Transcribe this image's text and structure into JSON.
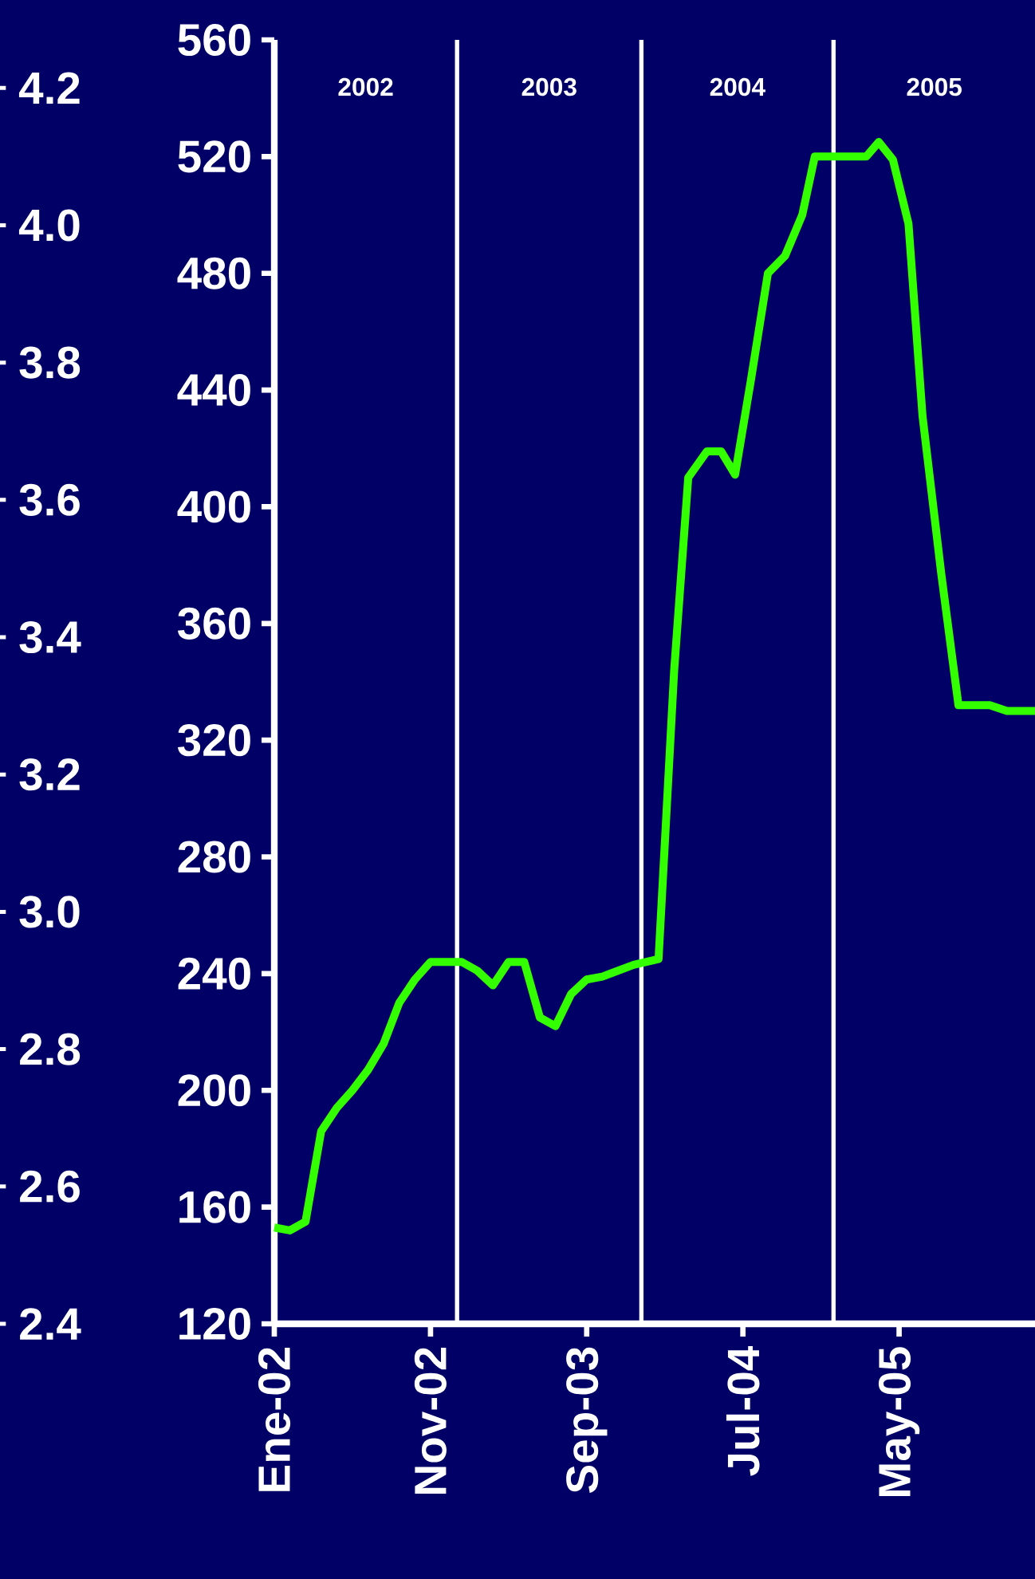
{
  "chart_data": {
    "type": "line",
    "x": [
      "2002-01",
      "2002-02",
      "2002-03",
      "2002-04",
      "2002-05",
      "2002-06",
      "2002-07",
      "2002-08",
      "2002-09",
      "2002-10",
      "2002-11",
      "2002-12",
      "2003-01",
      "2003-02",
      "2003-03",
      "2003-04",
      "2003-05",
      "2003-06",
      "2003-07",
      "2003-08",
      "2003-09",
      "2003-10",
      "2003-11",
      "2003-12",
      "2004-01-19",
      "2004-02-19",
      "2004-03-16",
      "2004-04-22",
      "2004-05-19",
      "2004-06-16",
      "2004-07-16",
      "2004-08-19",
      "2004-09-22",
      "2004-10-25",
      "2004-11-19",
      "2005-02-28",
      "2005-03-22",
      "2005-04-19",
      "2005-05-19",
      "2005-06-16",
      "2005-07-22",
      "2005-08-25",
      "2005-10-25",
      "2005-11-28",
      "2006-01-22"
    ],
    "series": [
      {
        "color": "#33ff00",
        "values": [
          153,
          152,
          155,
          186,
          194,
          200,
          207,
          216,
          230,
          238,
          244,
          244,
          244,
          241,
          236,
          244,
          244,
          225,
          222,
          233,
          238,
          239,
          241,
          243,
          245,
          344,
          410,
          419,
          419,
          411,
          443,
          480,
          486,
          500,
          520,
          520,
          525,
          519,
          497,
          431,
          377,
          332,
          332,
          330,
          330
        ]
      }
    ],
    "xlim": [
      "2002-01",
      "2006-01-22"
    ],
    "xticks": [
      {
        "value": "2002-01",
        "label": "Ene-02"
      },
      {
        "value": "2002-11",
        "label": "Nov-02"
      },
      {
        "value": "2003-09",
        "label": "Sep-03"
      },
      {
        "value": "2004-07",
        "label": "Jul-04"
      },
      {
        "value": "2005-05",
        "label": "May-05"
      }
    ],
    "ylim": [
      120,
      560
    ],
    "yticks": [
      120,
      160,
      200,
      240,
      280,
      320,
      360,
      400,
      440,
      480,
      520,
      560
    ],
    "y2lim": [
      2.4,
      4.27
    ],
    "y2ticks": [
      2.4,
      2.6,
      2.8,
      {
        "value": 3.0,
        "label": "3.0"
      },
      3.2,
      3.4,
      3.6,
      3.8,
      {
        "value": 4.0,
        "label": "4.0"
      },
      4.2
    ],
    "ref_lines": [
      {
        "axis": "x",
        "value": "2002-12-22",
        "color": "#ffffff"
      },
      {
        "axis": "x",
        "value": "2003-12-16",
        "color": "#ffffff"
      },
      {
        "axis": "x",
        "value": "2004-12-25",
        "color": "#ffffff"
      }
    ],
    "annotations": [
      "2002",
      "2003",
      "2004",
      "2005"
    ],
    "grid": false,
    "marker": "none",
    "line_style": "solid"
  }
}
